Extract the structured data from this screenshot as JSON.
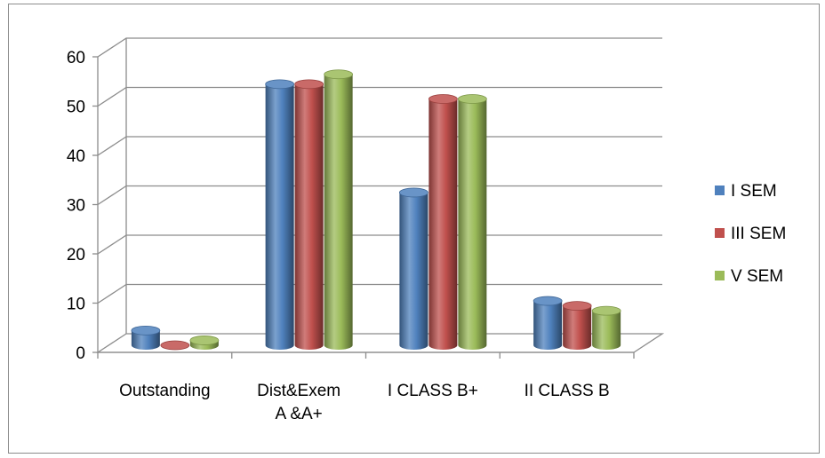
{
  "chart_data": {
    "type": "bar",
    "categories": [
      [
        "Outstanding"
      ],
      [
        "Dist&Exem",
        "A &A+"
      ],
      [
        "I CLASS B+"
      ],
      [
        "II CLASS B"
      ]
    ],
    "series": [
      {
        "name": "I SEM",
        "values": [
          3,
          53,
          31,
          9
        ],
        "color": "#4f81bd"
      },
      {
        "name": "III SEM",
        "values": [
          0,
          53,
          50,
          8
        ],
        "color": "#c0504d"
      },
      {
        "name": "V SEM",
        "values": [
          1,
          55,
          50,
          7
        ],
        "color": "#9bbb59"
      }
    ],
    "yticks": [
      "0",
      "10",
      "20",
      "30",
      "40",
      "50",
      "60"
    ],
    "ylim": [
      0,
      60
    ],
    "grid": true,
    "legend_position": "right",
    "title": "",
    "xlabel": "",
    "ylabel": ""
  }
}
